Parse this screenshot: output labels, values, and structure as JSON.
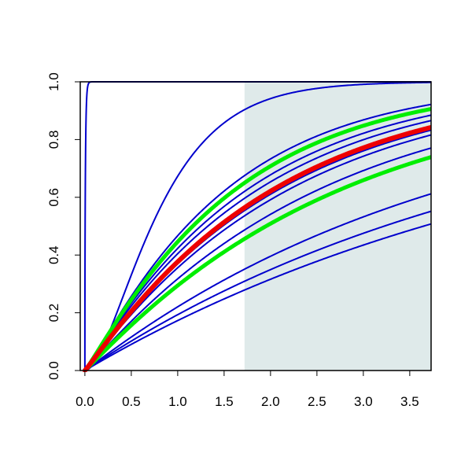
{
  "chart_data": {
    "type": "line",
    "title": "",
    "xlabel": "",
    "ylabel": "",
    "xlim": [
      -0.05,
      3.73
    ],
    "ylim": [
      0.0,
      1.0
    ],
    "x_ticks": [
      0.0,
      0.5,
      1.0,
      1.5,
      2.0,
      2.5,
      3.0,
      3.5
    ],
    "x_tick_labels": [
      "0.0",
      "0.5",
      "1.0",
      "1.5",
      "2.0",
      "2.5",
      "3.0",
      "3.5"
    ],
    "y_ticks": [
      0.0,
      0.2,
      0.4,
      0.6,
      0.8,
      1.0
    ],
    "y_tick_labels": [
      "0.0",
      "0.2",
      "0.4",
      "0.6",
      "0.8",
      "1.0"
    ],
    "grid": false,
    "legend": "none",
    "shaded_region": {
      "x_from": 1.72,
      "x_to": 3.73,
      "color": "#dfeaea"
    },
    "curve_family": "gamma CDF",
    "series": [
      {
        "color": "#0000cc",
        "width": 2,
        "shape": 0.55,
        "rate": 100.0
      },
      {
        "color": "#0000cc",
        "width": 2,
        "shape": 1.9,
        "rate": 2.2
      },
      {
        "color": "#0000cc",
        "width": 2,
        "shape": 1.12,
        "rate": 0.74
      },
      {
        "color": "#0000cc",
        "width": 2,
        "shape": 1.07,
        "rate": 0.61
      },
      {
        "color": "#0000cc",
        "width": 2,
        "shape": 1.05,
        "rate": 0.56
      },
      {
        "color": "#0000cc",
        "width": 2,
        "shape": 1.05,
        "rate": 0.5
      },
      {
        "color": "#0000cc",
        "width": 2,
        "shape": 1.04,
        "rate": 0.47
      },
      {
        "color": "#0000cc",
        "width": 2,
        "shape": 1.04,
        "rate": 0.41
      },
      {
        "color": "#0000cc",
        "width": 2,
        "shape": 1.02,
        "rate": 0.26
      },
      {
        "color": "#0000cc",
        "width": 2,
        "shape": 1.0,
        "rate": 0.215
      },
      {
        "color": "#0000cc",
        "width": 2,
        "shape": 1.0,
        "rate": 0.19
      },
      {
        "color": "#00ee00",
        "width": 5,
        "shape": 1.1,
        "rate": 0.68
      },
      {
        "color": "#00ee00",
        "width": 5,
        "shape": 1.04,
        "rate": 0.375
      },
      {
        "color": "#ee0000",
        "width": 6,
        "shape": 1.06,
        "rate": 0.52
      }
    ],
    "colors": {
      "line": "#0000cc",
      "highlight_green": "#00ee00",
      "highlight_red": "#ee0000",
      "axis": "#000000"
    }
  }
}
